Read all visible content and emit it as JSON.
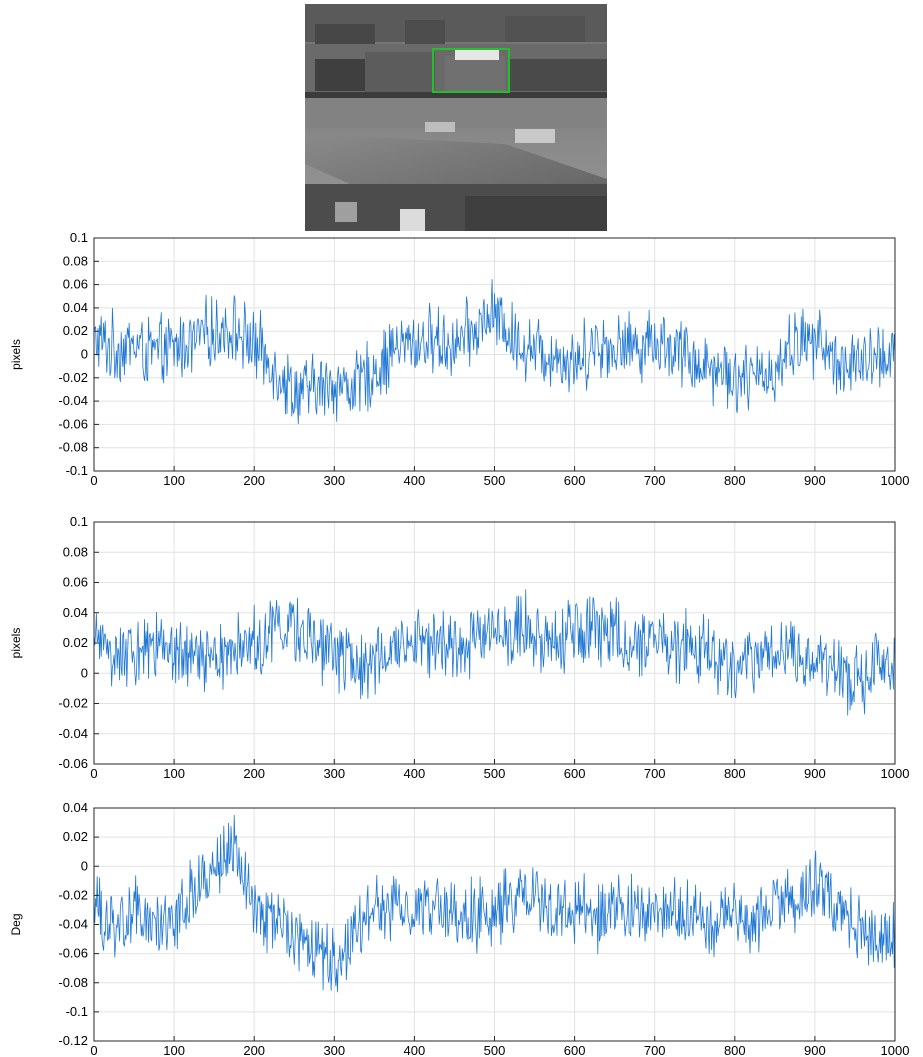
{
  "image": {
    "description_color_box": "#22c02a"
  },
  "chart_data": [
    {
      "type": "line",
      "title": "",
      "xlabel": "",
      "ylabel": "pixels",
      "xlim": [
        0,
        1000
      ],
      "ylim": [
        -0.1,
        0.1
      ],
      "xticks": [
        "0",
        "100",
        "200",
        "300",
        "400",
        "500",
        "600",
        "700",
        "800",
        "900",
        "1000"
      ],
      "yticks": [
        "-0.1",
        "-0.08",
        "-0.06",
        "-0.04",
        "-0.02",
        "0",
        "0.02",
        "0.04",
        "0.06",
        "0.08",
        "0.1"
      ],
      "grid": true,
      "color": "#1f77d4",
      "series": [
        {
          "x": [
            0,
            25,
            50,
            75,
            100,
            125,
            150,
            175,
            200,
            225,
            250,
            275,
            300,
            325,
            350,
            375,
            400,
            425,
            450,
            475,
            500,
            525,
            550,
            575,
            600,
            625,
            650,
            675,
            700,
            725,
            750,
            775,
            800,
            825,
            850,
            875,
            900,
            925,
            950,
            975,
            1000
          ],
          "values": [
            0.012,
            0.005,
            0.008,
            0.0,
            0.005,
            0.012,
            0.02,
            0.022,
            0.008,
            -0.01,
            -0.032,
            -0.03,
            -0.025,
            -0.028,
            -0.015,
            0.005,
            0.01,
            0.012,
            0.008,
            0.02,
            0.035,
            0.012,
            0.005,
            0.0,
            -0.008,
            0.01,
            0.005,
            0.008,
            0.012,
            0.005,
            -0.005,
            -0.012,
            -0.018,
            -0.022,
            -0.012,
            0.01,
            0.012,
            -0.005,
            -0.01,
            -0.005,
            0.005
          ]
        }
      ]
    },
    {
      "type": "line",
      "title": "",
      "xlabel": "",
      "ylabel": "pixels",
      "xlim": [
        0,
        1000
      ],
      "ylim": [
        -0.06,
        0.1
      ],
      "xticks": [
        "0",
        "100",
        "200",
        "300",
        "400",
        "500",
        "600",
        "700",
        "800",
        "900",
        "1000"
      ],
      "yticks": [
        "-0.06",
        "-0.04",
        "-0.02",
        "0",
        "0.02",
        "0.04",
        "0.06",
        "0.08",
        "0.1"
      ],
      "grid": true,
      "color": "#1f77d4",
      "series": [
        {
          "x": [
            0,
            25,
            50,
            75,
            100,
            125,
            150,
            175,
            200,
            225,
            250,
            275,
            300,
            325,
            350,
            375,
            400,
            425,
            450,
            475,
            500,
            525,
            550,
            575,
            600,
            625,
            650,
            675,
            700,
            725,
            750,
            775,
            800,
            825,
            850,
            875,
            900,
            925,
            950,
            975,
            1000
          ],
          "values": [
            0.018,
            0.012,
            0.01,
            0.015,
            0.012,
            0.01,
            0.008,
            0.012,
            0.02,
            0.028,
            0.03,
            0.02,
            0.015,
            0.008,
            0.01,
            0.02,
            0.022,
            0.018,
            0.015,
            0.025,
            0.028,
            0.03,
            0.025,
            0.022,
            0.03,
            0.028,
            0.025,
            0.02,
            0.022,
            0.02,
            0.015,
            0.012,
            0.0,
            0.008,
            0.012,
            0.015,
            0.01,
            0.002,
            -0.008,
            0.008,
            0.005
          ]
        }
      ]
    },
    {
      "type": "line",
      "title": "",
      "xlabel": "",
      "ylabel": "Deg",
      "xlim": [
        0,
        1000
      ],
      "ylim": [
        -0.12,
        0.04
      ],
      "xticks": [
        "0",
        "100",
        "200",
        "300",
        "400",
        "500",
        "600",
        "700",
        "800",
        "900",
        "1000"
      ],
      "yticks": [
        "-0.12",
        "-0.1",
        "-0.08",
        "-0.06",
        "-0.04",
        "-0.02",
        "0",
        "0.02",
        "0.04"
      ],
      "grid": true,
      "color": "#1f77d4",
      "series": [
        {
          "x": [
            0,
            25,
            50,
            75,
            100,
            125,
            150,
            175,
            200,
            225,
            250,
            275,
            300,
            325,
            350,
            375,
            400,
            425,
            450,
            475,
            500,
            525,
            550,
            575,
            600,
            625,
            650,
            675,
            700,
            725,
            750,
            775,
            800,
            825,
            850,
            875,
            900,
            925,
            950,
            975,
            1000
          ],
          "values": [
            -0.03,
            -0.045,
            -0.03,
            -0.045,
            -0.04,
            -0.015,
            0.0,
            0.01,
            -0.03,
            -0.04,
            -0.045,
            -0.06,
            -0.065,
            -0.05,
            -0.03,
            -0.03,
            -0.028,
            -0.03,
            -0.032,
            -0.035,
            -0.03,
            -0.025,
            -0.02,
            -0.035,
            -0.03,
            -0.035,
            -0.03,
            -0.03,
            -0.035,
            -0.03,
            -0.035,
            -0.04,
            -0.028,
            -0.045,
            -0.02,
            -0.025,
            -0.01,
            -0.03,
            -0.04,
            -0.05,
            -0.045
          ]
        }
      ]
    }
  ]
}
